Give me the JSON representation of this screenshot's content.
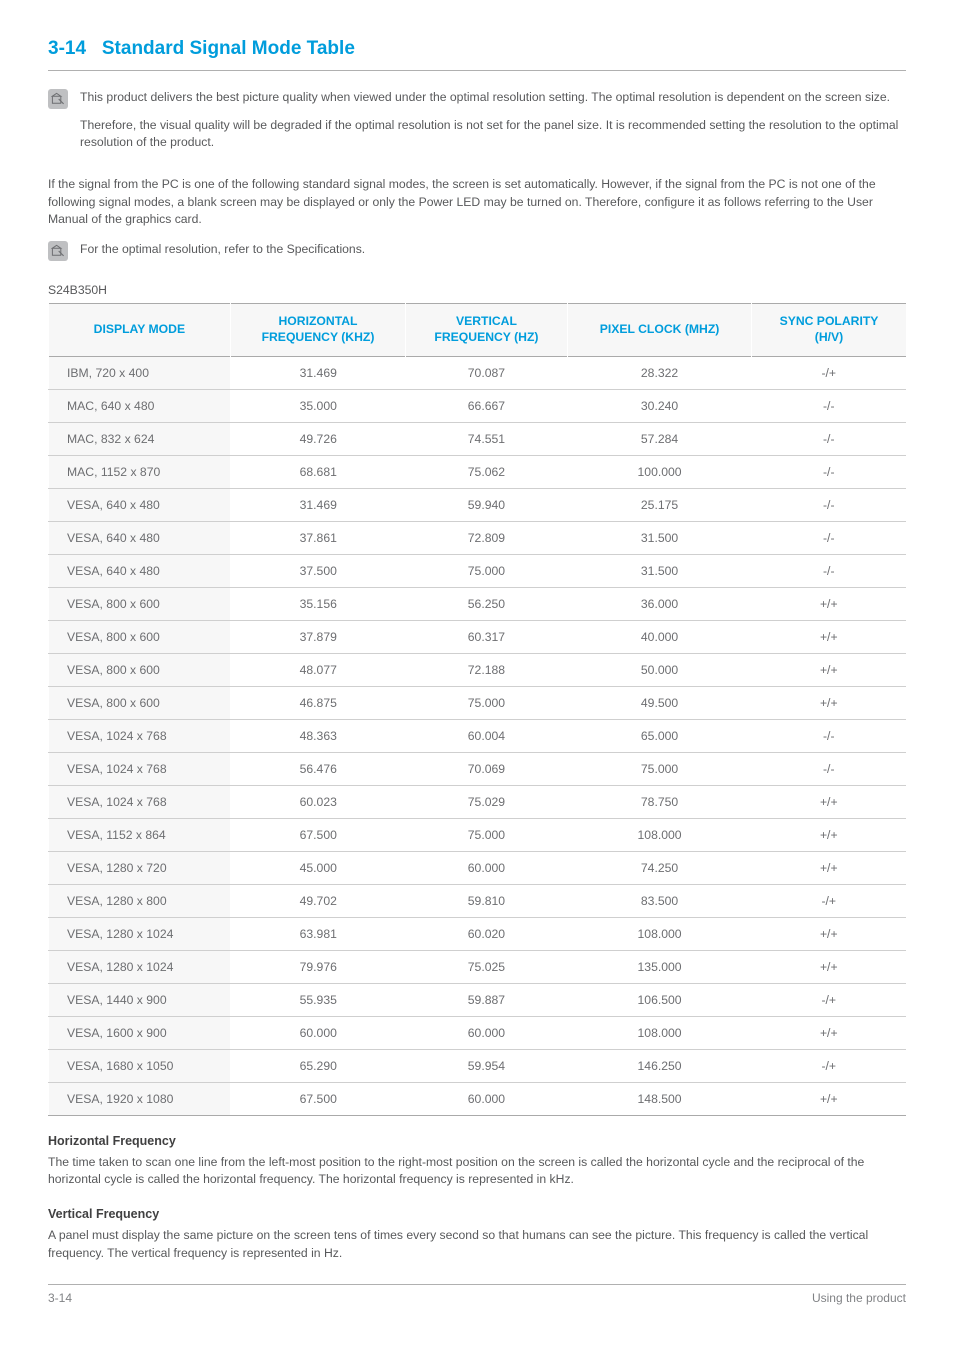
{
  "section": {
    "number": "3-14",
    "title": "Standard Signal Mode Table"
  },
  "notes": {
    "note1_p1": "This product delivers the best picture quality when viewed under the optimal resolution setting. The optimal resolution is dependent on the screen size.",
    "note1_p2": "Therefore, the visual quality will be degraded if the optimal resolution is not set for the panel size. It is recommended setting the resolution to the optimal resolution of the product.",
    "body1": "If the signal from the PC is one of the following standard signal modes, the screen is set automatically. However, if the signal from the PC is not one of the following signal modes, a blank screen may be displayed or only the Power LED may be turned on. Therefore, configure it as follows referring to the User Manual of the graphics card.",
    "note2": "For the optimal resolution, refer to the Specifications."
  },
  "model": "S24B350H",
  "table": {
    "headers": {
      "c0": "DISPLAY MODE",
      "c1_l1": "HORIZONTAL",
      "c1_l2": "FREQUENCY (KHZ)",
      "c2_l1": "VERTICAL",
      "c2_l2": "FREQUENCY (HZ)",
      "c3": "PIXEL CLOCK (MHZ)",
      "c4_l1": "SYNC POLARITY",
      "c4_l2": "(H/V)"
    },
    "rows": [
      {
        "mode": "IBM, 720 x 400",
        "hf": "31.469",
        "vf": "70.087",
        "pc": "28.322",
        "sp": "-/+"
      },
      {
        "mode": "MAC, 640 x 480",
        "hf": "35.000",
        "vf": "66.667",
        "pc": "30.240",
        "sp": "-/-"
      },
      {
        "mode": "MAC, 832 x 624",
        "hf": "49.726",
        "vf": "74.551",
        "pc": "57.284",
        "sp": "-/-"
      },
      {
        "mode": "MAC, 1152 x 870",
        "hf": "68.681",
        "vf": "75.062",
        "pc": "100.000",
        "sp": "-/-"
      },
      {
        "mode": "VESA, 640 x 480",
        "hf": "31.469",
        "vf": "59.940",
        "pc": "25.175",
        "sp": "-/-"
      },
      {
        "mode": "VESA, 640 x 480",
        "hf": "37.861",
        "vf": "72.809",
        "pc": "31.500",
        "sp": "-/-"
      },
      {
        "mode": "VESA, 640 x 480",
        "hf": "37.500",
        "vf": "75.000",
        "pc": "31.500",
        "sp": "-/-"
      },
      {
        "mode": "VESA, 800 x 600",
        "hf": "35.156",
        "vf": "56.250",
        "pc": "36.000",
        "sp": "+/+"
      },
      {
        "mode": "VESA, 800 x 600",
        "hf": "37.879",
        "vf": "60.317",
        "pc": "40.000",
        "sp": "+/+"
      },
      {
        "mode": "VESA, 800 x 600",
        "hf": "48.077",
        "vf": "72.188",
        "pc": "50.000",
        "sp": "+/+"
      },
      {
        "mode": "VESA, 800 x 600",
        "hf": "46.875",
        "vf": "75.000",
        "pc": "49.500",
        "sp": "+/+"
      },
      {
        "mode": "VESA, 1024 x 768",
        "hf": "48.363",
        "vf": "60.004",
        "pc": "65.000",
        "sp": "-/-"
      },
      {
        "mode": "VESA, 1024 x 768",
        "hf": "56.476",
        "vf": "70.069",
        "pc": "75.000",
        "sp": "-/-"
      },
      {
        "mode": "VESA, 1024 x 768",
        "hf": "60.023",
        "vf": "75.029",
        "pc": "78.750",
        "sp": "+/+"
      },
      {
        "mode": "VESA, 1152 x 864",
        "hf": "67.500",
        "vf": "75.000",
        "pc": "108.000",
        "sp": "+/+"
      },
      {
        "mode": "VESA, 1280 x 720",
        "hf": "45.000",
        "vf": "60.000",
        "pc": "74.250",
        "sp": "+/+"
      },
      {
        "mode": "VESA, 1280 x 800",
        "hf": "49.702",
        "vf": "59.810",
        "pc": "83.500",
        "sp": "-/+"
      },
      {
        "mode": "VESA, 1280 x 1024",
        "hf": "63.981",
        "vf": "60.020",
        "pc": "108.000",
        "sp": "+/+"
      },
      {
        "mode": "VESA, 1280 x 1024",
        "hf": "79.976",
        "vf": "75.025",
        "pc": "135.000",
        "sp": "+/+"
      },
      {
        "mode": "VESA, 1440 x 900",
        "hf": "55.935",
        "vf": "59.887",
        "pc": "106.500",
        "sp": "-/+"
      },
      {
        "mode": "VESA, 1600 x 900",
        "hf": "60.000",
        "vf": "60.000",
        "pc": "108.000",
        "sp": "+/+"
      },
      {
        "mode": "VESA, 1680 x 1050",
        "hf": "65.290",
        "vf": "59.954",
        "pc": "146.250",
        "sp": "-/+"
      },
      {
        "mode": "VESA, 1920 x 1080",
        "hf": "67.500",
        "vf": "60.000",
        "pc": "148.500",
        "sp": "+/+"
      }
    ]
  },
  "defs": {
    "hf_title": "Horizontal Frequency",
    "hf_text": "The time taken to scan one line from the left-most position to the right-most position on the screen is called the horizontal cycle and the reciprocal of the horizontal cycle is called the horizontal frequency. The horizontal frequency is represented in kHz.",
    "vf_title": "Vertical Frequency",
    "vf_text": "A panel must display the same picture on the screen tens of times every second so that humans can see the picture. This frequency is called the vertical frequency. The vertical frequency is represented in Hz."
  },
  "footer": {
    "left": "3-14",
    "right": "Using the product"
  },
  "colors": {
    "accent": "#009ddc",
    "text": "#58595b",
    "zebra": "#f7f7f7",
    "border": "#cfcfcf",
    "icon_bg": "#bfc0c2"
  }
}
